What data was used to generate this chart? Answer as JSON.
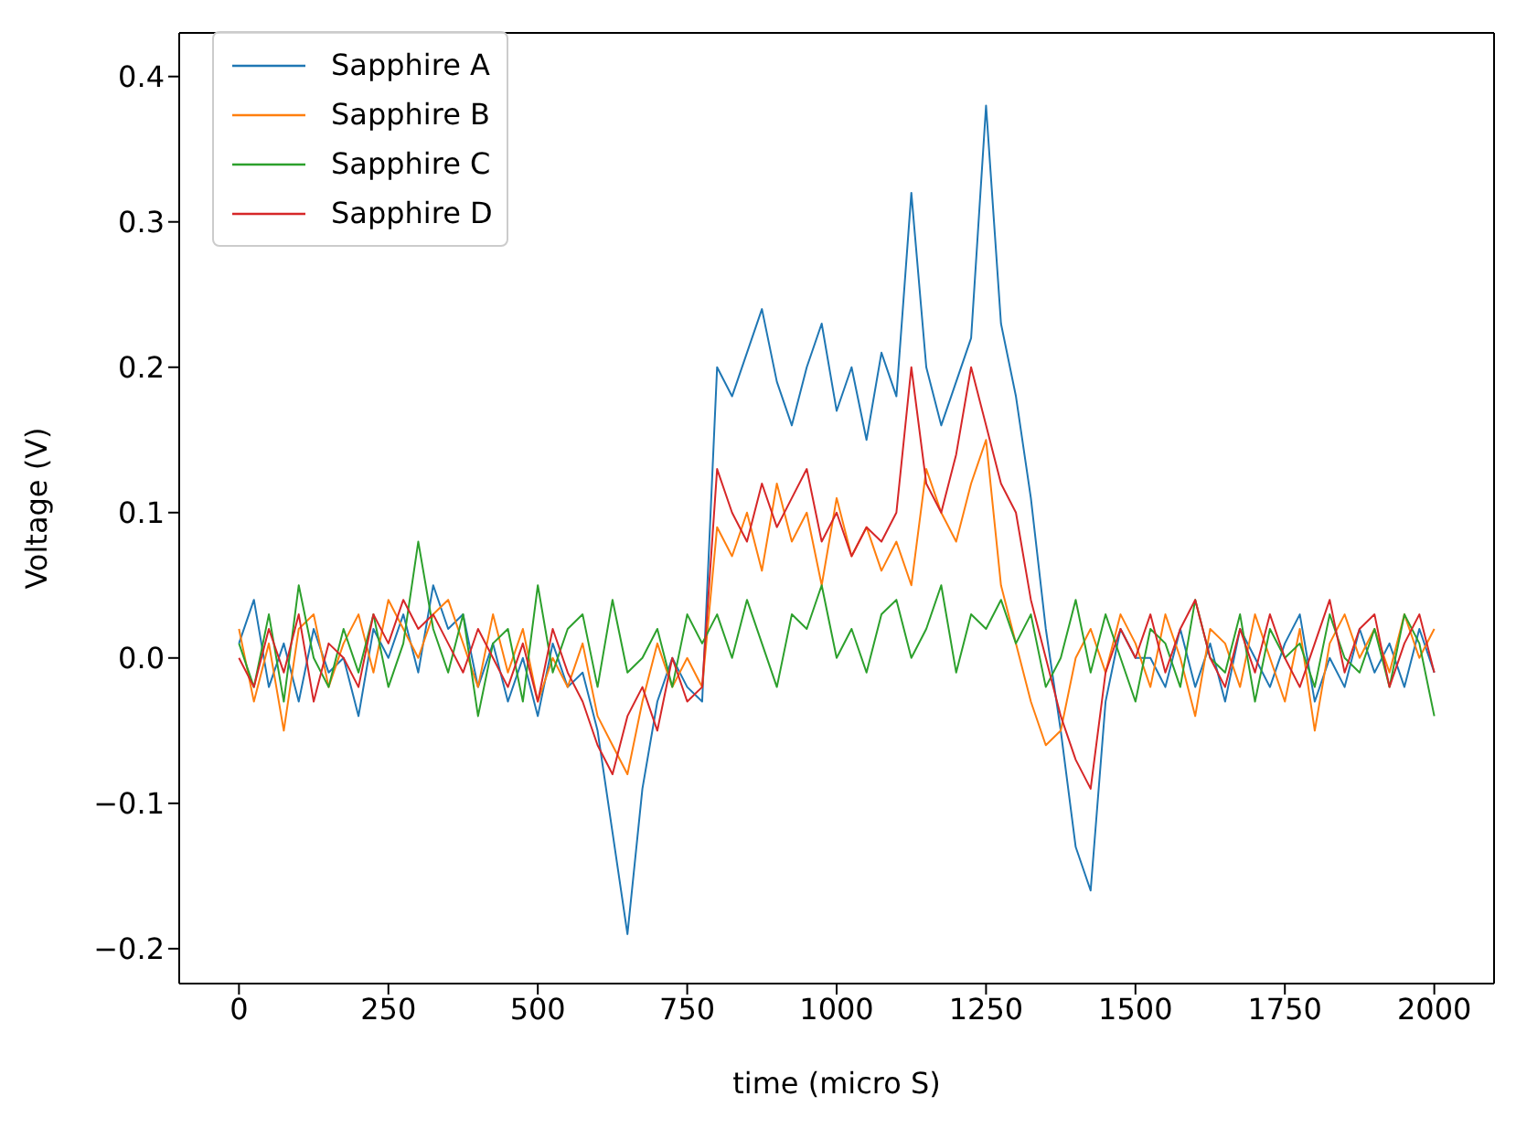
{
  "chart_data": {
    "type": "line",
    "xlabel": "time (micro S)",
    "ylabel": "Voltage (V)",
    "x": [
      0,
      25,
      50,
      75,
      100,
      125,
      150,
      175,
      200,
      225,
      250,
      275,
      300,
      325,
      350,
      375,
      400,
      425,
      450,
      475,
      500,
      525,
      550,
      575,
      600,
      625,
      650,
      675,
      700,
      725,
      750,
      775,
      800,
      825,
      850,
      875,
      900,
      925,
      950,
      975,
      1000,
      1025,
      1050,
      1075,
      1100,
      1125,
      1150,
      1175,
      1200,
      1225,
      1250,
      1275,
      1300,
      1325,
      1350,
      1375,
      1400,
      1425,
      1450,
      1475,
      1500,
      1525,
      1550,
      1575,
      1600,
      1625,
      1650,
      1675,
      1700,
      1725,
      1750,
      1775,
      1800,
      1825,
      1850,
      1875,
      1900,
      1925,
      1950,
      1975,
      2000
    ],
    "series": [
      {
        "name": "Sapphire A",
        "color": "#1f77b4",
        "values": [
          0.01,
          0.04,
          -0.02,
          0.01,
          -0.03,
          0.02,
          -0.01,
          0.0,
          -0.04,
          0.02,
          0.0,
          0.03,
          -0.01,
          0.05,
          0.02,
          0.03,
          -0.02,
          0.01,
          -0.03,
          0.0,
          -0.04,
          0.01,
          -0.02,
          -0.01,
          -0.05,
          -0.12,
          -0.19,
          -0.09,
          -0.03,
          0.0,
          -0.02,
          -0.03,
          0.2,
          0.18,
          0.21,
          0.24,
          0.19,
          0.16,
          0.2,
          0.23,
          0.17,
          0.2,
          0.15,
          0.21,
          0.18,
          0.32,
          0.2,
          0.16,
          0.19,
          0.22,
          0.38,
          0.23,
          0.18,
          0.11,
          0.02,
          -0.05,
          -0.13,
          -0.16,
          -0.03,
          0.02,
          0.0,
          0.0,
          -0.02,
          0.02,
          -0.02,
          0.01,
          -0.03,
          0.02,
          0.0,
          -0.02,
          0.01,
          0.03,
          -0.03,
          0.0,
          -0.02,
          0.02,
          -0.01,
          0.01,
          -0.02,
          0.02,
          -0.01
        ]
      },
      {
        "name": "Sapphire B",
        "color": "#ff7f0e",
        "values": [
          0.02,
          -0.03,
          0.01,
          -0.05,
          0.02,
          0.03,
          -0.02,
          0.01,
          0.03,
          -0.01,
          0.04,
          0.02,
          0.0,
          0.03,
          0.04,
          0.01,
          -0.02,
          0.03,
          -0.01,
          0.02,
          -0.03,
          0.0,
          -0.02,
          0.01,
          -0.04,
          -0.06,
          -0.08,
          -0.03,
          0.01,
          -0.02,
          0.0,
          -0.02,
          0.09,
          0.07,
          0.1,
          0.06,
          0.12,
          0.08,
          0.1,
          0.05,
          0.11,
          0.07,
          0.09,
          0.06,
          0.08,
          0.05,
          0.13,
          0.1,
          0.08,
          0.12,
          0.15,
          0.05,
          0.01,
          -0.03,
          -0.06,
          -0.05,
          0.0,
          0.02,
          -0.01,
          0.03,
          0.01,
          -0.02,
          0.03,
          0.0,
          -0.04,
          0.02,
          0.01,
          -0.02,
          0.03,
          0.0,
          -0.03,
          0.02,
          -0.05,
          0.01,
          0.03,
          0.0,
          0.02,
          -0.01,
          0.03,
          0.0,
          0.02
        ]
      },
      {
        "name": "Sapphire C",
        "color": "#2ca02c",
        "values": [
          0.01,
          -0.02,
          0.03,
          -0.03,
          0.05,
          0.0,
          -0.02,
          0.02,
          -0.01,
          0.03,
          -0.02,
          0.01,
          0.08,
          0.02,
          -0.01,
          0.03,
          -0.04,
          0.01,
          0.02,
          -0.03,
          0.05,
          -0.01,
          0.02,
          0.03,
          -0.02,
          0.04,
          -0.01,
          0.0,
          0.02,
          -0.02,
          0.03,
          0.01,
          0.03,
          0.0,
          0.04,
          0.01,
          -0.02,
          0.03,
          0.02,
          0.05,
          0.0,
          0.02,
          -0.01,
          0.03,
          0.04,
          0.0,
          0.02,
          0.05,
          -0.01,
          0.03,
          0.02,
          0.04,
          0.01,
          0.03,
          -0.02,
          0.0,
          0.04,
          -0.01,
          0.03,
          0.0,
          -0.03,
          0.02,
          0.01,
          -0.02,
          0.04,
          0.0,
          -0.01,
          0.03,
          -0.03,
          0.02,
          0.0,
          0.01,
          -0.02,
          0.03,
          0.0,
          -0.01,
          0.02,
          -0.02,
          0.03,
          0.01,
          -0.04
        ]
      },
      {
        "name": "Sapphire D",
        "color": "#d62728",
        "values": [
          0.0,
          -0.02,
          0.02,
          -0.01,
          0.03,
          -0.03,
          0.01,
          0.0,
          -0.02,
          0.03,
          0.01,
          0.04,
          0.02,
          0.03,
          0.01,
          -0.01,
          0.02,
          0.0,
          -0.02,
          0.01,
          -0.03,
          0.02,
          -0.01,
          -0.03,
          -0.06,
          -0.08,
          -0.04,
          -0.02,
          -0.05,
          0.0,
          -0.03,
          -0.02,
          0.13,
          0.1,
          0.08,
          0.12,
          0.09,
          0.11,
          0.13,
          0.08,
          0.1,
          0.07,
          0.09,
          0.08,
          0.1,
          0.2,
          0.12,
          0.1,
          0.14,
          0.2,
          0.16,
          0.12,
          0.1,
          0.04,
          0.0,
          -0.04,
          -0.07,
          -0.09,
          -0.01,
          0.02,
          0.0,
          0.03,
          -0.01,
          0.02,
          0.04,
          0.0,
          -0.02,
          0.02,
          -0.01,
          0.03,
          0.0,
          -0.02,
          0.01,
          0.04,
          -0.01,
          0.02,
          0.03,
          -0.02,
          0.01,
          0.03,
          -0.01
        ]
      }
    ],
    "xlim": [
      -100,
      2100
    ],
    "xticks": [
      0,
      250,
      500,
      750,
      1000,
      1250,
      1500,
      1750,
      2000
    ],
    "ylim": [
      -0.224,
      0.43
    ],
    "yticks": [
      {
        "value": -0.2,
        "label": "−0.2"
      },
      {
        "value": -0.1,
        "label": "−0.1"
      },
      {
        "value": 0,
        "label": "0.0"
      },
      {
        "value": 0.1,
        "label": "0.1"
      },
      {
        "value": 0.2,
        "label": "0.2"
      },
      {
        "value": 0.3,
        "label": "0.3"
      },
      {
        "value": 0.4,
        "label": "0.4"
      }
    ],
    "grid": false,
    "legend": "top left",
    "marker": "none",
    "line_style": "solid"
  }
}
